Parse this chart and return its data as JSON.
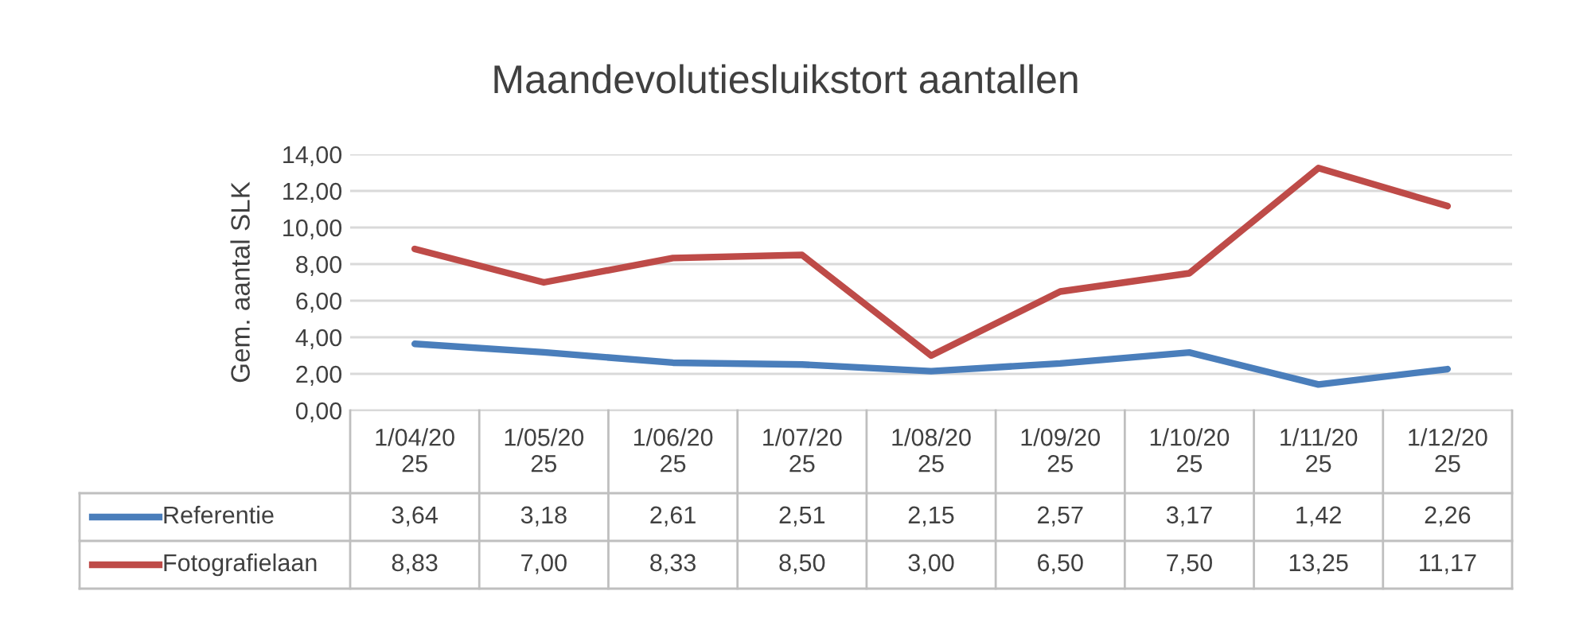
{
  "chart_data": {
    "type": "line",
    "title": "Maandevolutiesluikstort aantallen",
    "ylabel": "Gem. aantal SLK",
    "categories": [
      "1/04/2025",
      "1/05/2025",
      "1/06/2025",
      "1/07/2025",
      "1/08/2025",
      "1/09/2025",
      "1/10/2025",
      "1/11/2025",
      "1/12/2025"
    ],
    "series": [
      {
        "name": "Referentie",
        "color": "#4a7ebb",
        "values": [
          3.64,
          3.18,
          2.61,
          2.51,
          2.15,
          2.57,
          3.17,
          1.42,
          2.26
        ],
        "value_labels": [
          "3,64",
          "3,18",
          "2,61",
          "2,51",
          "2,15",
          "2,57",
          "3,17",
          "1,42",
          "2,26"
        ]
      },
      {
        "name": "Fotografielaan",
        "color": "#be4b48",
        "values": [
          8.83,
          7.0,
          8.33,
          8.5,
          3.0,
          6.5,
          7.5,
          13.25,
          11.17
        ],
        "value_labels": [
          "8,83",
          "7,00",
          "8,33",
          "8,50",
          "3,00",
          "6,50",
          "7,50",
          "13,25",
          "11,17"
        ]
      }
    ],
    "ylim": [
      0,
      14
    ],
    "yticks": [
      {
        "value": 0,
        "label": "0,00"
      },
      {
        "value": 2,
        "label": "2,00"
      },
      {
        "value": 4,
        "label": "4,00"
      },
      {
        "value": 6,
        "label": "6,00"
      },
      {
        "value": 8,
        "label": "8,00"
      },
      {
        "value": 10,
        "label": "10,00"
      },
      {
        "value": 12,
        "label": "12,00"
      },
      {
        "value": 14,
        "label": "14,00"
      }
    ],
    "grid": "y",
    "legend": "bottom",
    "marker": "none",
    "line_style": "solid"
  }
}
